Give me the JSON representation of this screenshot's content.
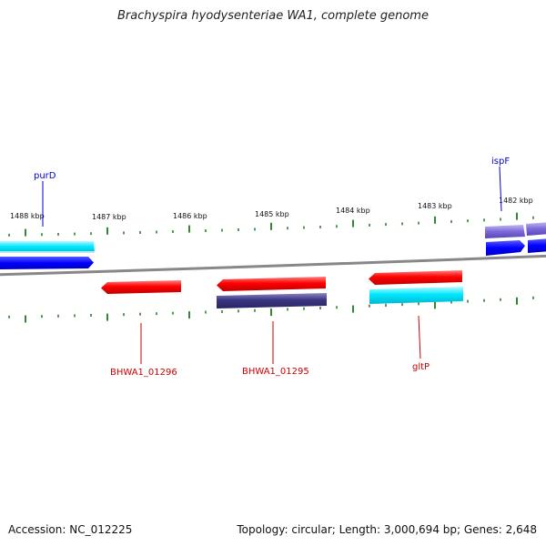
{
  "title": "Brachyspira hyodysenteriae WA1, complete genome",
  "footer": {
    "accession": "Accession: NC_012225",
    "summary": "Topology: circular; Length: 3,000,694 bp; Genes: 2,648"
  },
  "scale_labels": [
    "1488 kbp",
    "1487 kbp",
    "1486 kbp",
    "1485 kbp",
    "1484 kbp",
    "1483 kbp",
    "1482 kbp"
  ],
  "gene_labels": {
    "top": [
      "purD",
      "ispF"
    ],
    "bottom": [
      "BHWA1_01296",
      "BHWA1_01295",
      "gltP"
    ]
  },
  "colors": {
    "forward_label": "#0000cc",
    "reverse_label": "#cc0000",
    "red_feature": "#ff0000",
    "cyan_feature": "#00e5ff",
    "blue_feature": "#0000ff",
    "navy_feature": "#3a3580",
    "lavender_feature": "#7b68d8",
    "tick": "#1a7a1a",
    "backbone": "#888888"
  }
}
